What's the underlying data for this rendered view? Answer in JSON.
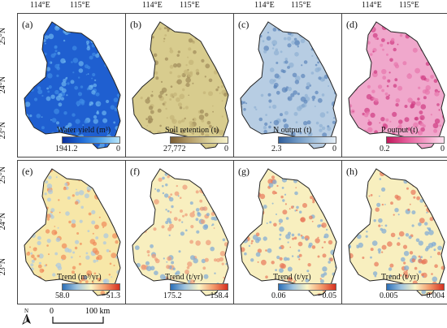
{
  "top_lon_labels": [
    "114°E",
    "115°E"
  ],
  "side_lat_labels": [
    "25°N",
    "24°N",
    "23°N"
  ],
  "panels": [
    {
      "id": "a",
      "label": "(a)",
      "legend": {
        "title": "Water yield (m³)",
        "min": "1941.2",
        "max": "0",
        "colors": [
          "#0a2f9c",
          "#1f6ad6",
          "#56a8ec",
          "#b7e4fa"
        ]
      },
      "fill": [
        "#1f5fd0",
        "#3f8be6",
        "#6bb3f0"
      ]
    },
    {
      "id": "b",
      "label": "(b)",
      "legend": {
        "title": "Soil retention (t)",
        "min": "27,772",
        "max": "0",
        "colors": [
          "#7a5c32",
          "#b59d6a",
          "#d9cf98",
          "#f5efc9"
        ]
      },
      "fill": [
        "#d8cc8e",
        "#c4b377",
        "#9f8a5a"
      ]
    },
    {
      "id": "c",
      "label": "(c)",
      "legend": {
        "title": "N output (t)",
        "min": "2.3",
        "max": "0",
        "colors": [
          "#2f5d9a",
          "#6f98c4",
          "#aac6df",
          "#e5eef6"
        ]
      },
      "fill": [
        "#b7cde3",
        "#8fb0d3",
        "#5d86ba"
      ]
    },
    {
      "id": "d",
      "label": "(d)",
      "legend": {
        "title": "P output (t)",
        "min": "0.2",
        "max": "0",
        "colors": [
          "#c2185b",
          "#e35a98",
          "#f29ac4",
          "#fde3f0"
        ]
      },
      "fill": [
        "#f0a8cc",
        "#e776ad",
        "#cf3a82"
      ]
    },
    {
      "id": "e",
      "label": "(e)",
      "legend": {
        "title": "Trend (m³/yr)",
        "min": "58.0",
        "max": "−51.3",
        "colors": [
          "#2c6fb8",
          "#9fc4e0",
          "#fbf5c5",
          "#f39a6b",
          "#d7301f"
        ]
      },
      "fill": [
        "#f7e7a8",
        "#a9c8e2",
        "#ef8a5a"
      ]
    },
    {
      "id": "f",
      "label": "(f)",
      "legend": {
        "title": "Trend (t/yr)",
        "min": "175.2",
        "max": "−158.4",
        "colors": [
          "#2c6fb8",
          "#9fc4e0",
          "#fbf5c5",
          "#f39a6b",
          "#d7301f"
        ]
      },
      "fill": [
        "#f8efbf",
        "#7ea9d6",
        "#ee9a78"
      ]
    },
    {
      "id": "g",
      "label": "(g)",
      "legend": {
        "title": "Trend (t/yr)",
        "min": "0.06",
        "max": "−0.05",
        "colors": [
          "#2c6fb8",
          "#9fc4e0",
          "#fbf5c5",
          "#f39a6b",
          "#d7301f"
        ]
      },
      "fill": [
        "#f8efbf",
        "#7ea9d6",
        "#e8775a"
      ]
    },
    {
      "id": "h",
      "label": "(h)",
      "legend": {
        "title": "Trend (t/yr)",
        "min": "0.005",
        "max": "−0.004",
        "colors": [
          "#2c6fb8",
          "#9fc4e0",
          "#fbf5c5",
          "#f39a6b",
          "#d7301f"
        ]
      },
      "fill": [
        "#f8efbf",
        "#7ea9d6",
        "#e8775a"
      ]
    }
  ],
  "north_label": "N",
  "scale_bar": {
    "start": "0",
    "end": "100 km"
  }
}
